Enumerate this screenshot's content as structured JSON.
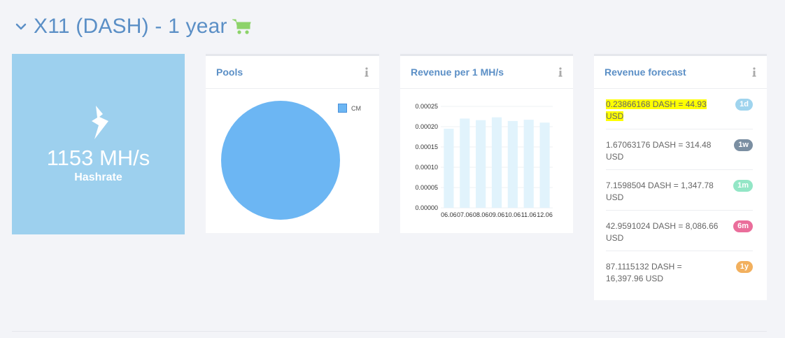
{
  "header": {
    "title": "X11 (DASH) - 1 year"
  },
  "hashrate": {
    "value": "1153 MH/s",
    "label": "Hashrate"
  },
  "pools": {
    "title": "Pools",
    "legend": [
      {
        "label": "CM",
        "color": "#6cb6f3"
      }
    ],
    "pie": [
      {
        "name": "CM",
        "value": 100,
        "color": "#6cb6f3"
      }
    ]
  },
  "revenue": {
    "title": "Revenue per 1 MH/s"
  },
  "forecast": {
    "title": "Revenue forecast",
    "items": [
      {
        "text": "0.23866168 DASH = 44.93 USD",
        "badge": "1d",
        "color": "#9fd4ee",
        "highlight": true
      },
      {
        "text": "1.67063176 DASH = 314.48 USD",
        "badge": "1w",
        "color": "#7b8fa2",
        "highlight": false
      },
      {
        "text": "7.1598504 DASH = 1,347.78 USD",
        "badge": "1m",
        "color": "#93e6c6",
        "highlight": false
      },
      {
        "text": "42.9591024 DASH = 8,086.66 USD",
        "badge": "6m",
        "color": "#ea6e9b",
        "highlight": false
      },
      {
        "text": "87.1115132 DASH = 16,397.96 USD",
        "badge": "1y",
        "color": "#f2b05e",
        "highlight": false
      }
    ]
  },
  "chart_data": {
    "type": "bar",
    "categories": [
      "06.06",
      "07.06",
      "08.06",
      "09.06",
      "10.06",
      "11.06",
      "12.06"
    ],
    "values": [
      0.000195,
      0.00022,
      0.000216,
      0.000223,
      0.000214,
      0.000217,
      0.00021
    ],
    "ylim": [
      0,
      0.00025
    ],
    "yticks": [
      "0.00000",
      "0.00005",
      "0.00010",
      "0.00015",
      "0.00020",
      "0.00025"
    ],
    "grid": true,
    "bar_color": "#e1f3fc",
    "title": "Revenue per 1 MH/s"
  }
}
